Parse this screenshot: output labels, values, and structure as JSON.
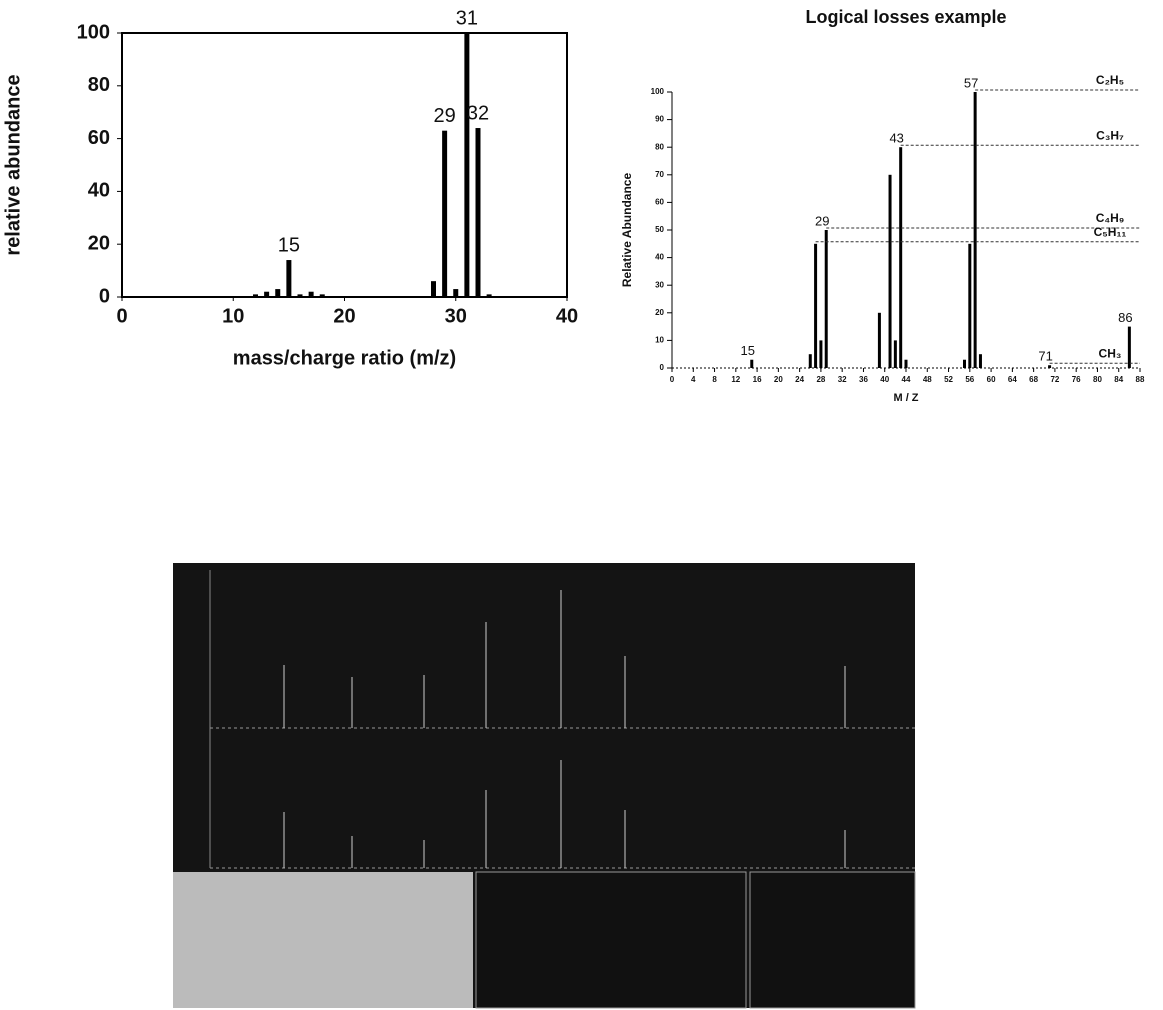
{
  "chart_data": [
    {
      "type": "bar",
      "ylabel": "relative abundance",
      "xlabel": "mass/charge ratio (m/z)",
      "x": [
        12,
        13,
        14,
        15,
        16,
        17,
        18,
        28,
        29,
        30,
        31,
        32,
        33
      ],
      "values": [
        1,
        2,
        3,
        14,
        1,
        2,
        1,
        6,
        63,
        3,
        100,
        64,
        1
      ],
      "color": "#000000",
      "xlim": [
        0,
        40
      ],
      "xticks": [
        0,
        10,
        20,
        30,
        40
      ],
      "ylim": [
        0,
        100
      ],
      "yticks": [
        0,
        20,
        40,
        60,
        80,
        100
      ],
      "frame": true,
      "annotations": [
        {
          "text": "15",
          "x": 15
        },
        {
          "text": "29",
          "x": 29
        },
        {
          "text": "31",
          "x": 31
        },
        {
          "text": "32",
          "x": 32
        }
      ]
    },
    {
      "type": "bar",
      "title": "Logical losses example",
      "ylabel": "Relative Abundance",
      "xlabel": "M / Z",
      "x": [
        15,
        26,
        27,
        28,
        29,
        39,
        41,
        42,
        43,
        44,
        55,
        56,
        57,
        58,
        71,
        86
      ],
      "values": [
        3,
        5,
        45,
        10,
        50,
        20,
        70,
        10,
        80,
        3,
        3,
        45,
        100,
        5,
        1,
        15
      ],
      "color": "#000000",
      "xlim": [
        0,
        88
      ],
      "xticks": [
        0,
        4,
        8,
        12,
        16,
        20,
        24,
        28,
        32,
        36,
        40,
        44,
        48,
        52,
        56,
        60,
        64,
        68,
        72,
        76,
        80,
        84,
        88
      ],
      "ylim": [
        0,
        100
      ],
      "yticks": [
        0,
        10,
        20,
        30,
        40,
        50,
        60,
        70,
        80,
        90,
        100
      ],
      "frame": false,
      "annotations": [
        {
          "text": "15",
          "x": 15
        },
        {
          "text": "29",
          "x": 29
        },
        {
          "text": "43",
          "x": 43
        },
        {
          "text": "57",
          "x": 57
        },
        {
          "text": "71",
          "x": 71
        },
        {
          "text": "86",
          "x": 86
        }
      ],
      "losses": [
        {
          "label": "C₂H₅",
          "from": 57
        },
        {
          "label": "C₃H₇",
          "from": 43
        },
        {
          "label": "C₄H₉",
          "from": 29
        },
        {
          "label": "C₅H₁₁",
          "from": 27
        },
        {
          "label": "CH₃",
          "from": 71
        }
      ]
    }
  ]
}
